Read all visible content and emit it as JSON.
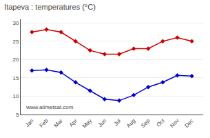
{
  "chart_data": {
    "type": "line",
    "title": "Itapeva : temperatures (°C)",
    "categories": [
      "Jan",
      "Feb",
      "Mar",
      "Apr",
      "May",
      "Jun",
      "Jul",
      "Aug",
      "Sep",
      "Oct",
      "Nov",
      "Dec"
    ],
    "series": [
      {
        "color": "#cc0000",
        "marker": "diamond",
        "values": [
          27.5,
          28.2,
          27.5,
          25.0,
          22.5,
          21.5,
          21.5,
          23.0,
          23.0,
          25.0,
          26.0,
          25.0
        ]
      },
      {
        "color": "#0000cc",
        "marker": "diamond",
        "values": [
          17.0,
          17.2,
          16.5,
          13.8,
          11.5,
          9.2,
          8.8,
          10.3,
          12.5,
          13.8,
          15.7,
          15.5
        ]
      }
    ],
    "ylim": [
      5,
      31
    ],
    "yticks": [
      5,
      10,
      15,
      20,
      25,
      30
    ],
    "grid": true,
    "annotations": [
      "www.allmetsat.com"
    ]
  }
}
